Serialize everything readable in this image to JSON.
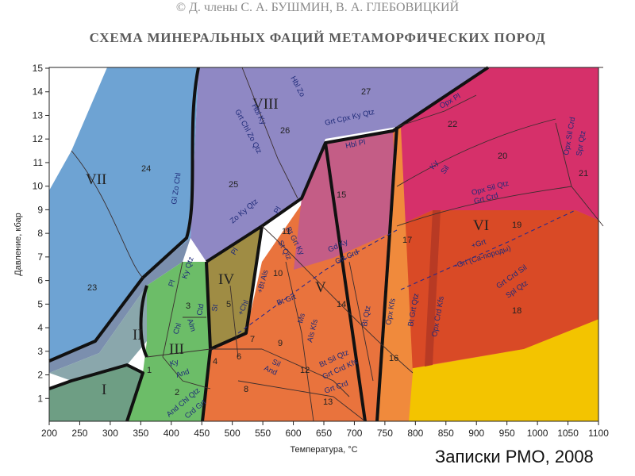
{
  "header": {
    "copyright": "© Д. члены С. А. БУШМИН, В. А. ГЛЕБОВИЦКИЙ",
    "title": "СХЕМА МИНЕРАЛЬНЫХ ФАЦИЙ МЕТАМОРФИЧЕСКИХ ПОРОД"
  },
  "footer": {
    "source": "Записки РМО, 2008"
  },
  "axes": {
    "xlabel": "Температура, °C",
    "ylabel": "Давление, кбар",
    "x_ticks": [
      "200",
      "250",
      "300",
      "350",
      "400",
      "450",
      "500",
      "550",
      "600",
      "650",
      "700",
      "750",
      "800",
      "850",
      "900",
      "950",
      "1000",
      "1050",
      "1100"
    ],
    "y_ticks": [
      "1",
      "2",
      "3",
      "4",
      "5",
      "6",
      "7",
      "8",
      "9",
      "10",
      "11",
      "12",
      "13",
      "14",
      "15"
    ]
  },
  "facies": {
    "roman": [
      "I",
      "II",
      "III",
      "IV",
      "V",
      "VI",
      "VII",
      "VIII"
    ],
    "fields": [
      "1",
      "2",
      "3",
      "4",
      "5",
      "6",
      "7",
      "8",
      "9",
      "10",
      "11",
      "12",
      "13",
      "14",
      "15",
      "16",
      "17",
      "18",
      "19",
      "20",
      "21",
      "22",
      "23",
      "24",
      "25",
      "26",
      "27"
    ]
  },
  "labels": [
    "Gl Zo Chl",
    "Grt Chl Zo Qtz",
    "Hbl Ky",
    "Hbl Zo",
    "Zo Ky Qtz",
    "Grt Cpx Ky Qtz",
    "Hbl Pl",
    "Opx Pl",
    "Ky",
    "Sil",
    "Opx Sil Qtz",
    "Grt Crd",
    "Opx Sil Crd",
    "Spr Qtz",
    "Pl",
    "Pl",
    "Bt Grt Ky",
    "St Qtz",
    "+Bt Als",
    "Gd Ky",
    "Grt Crd",
    "+Grt",
    "-Grt (Ca-породы)",
    "Grt Crd Sil",
    "Spl Qtz",
    "Ky Qtz",
    "Pl",
    "Alm",
    "Chl",
    "Ctd",
    "St",
    "+Chl",
    "Ms",
    "Als Kfs",
    "Bt Qtz",
    "Opx Kfs",
    "Bt Grt Qtz",
    "Opx Crd Kfs",
    "Ky",
    "And",
    "Sil",
    "And",
    "Bt Sil Qtz",
    "Grt Crd Kfs",
    "And Chl Qtz",
    "Crd Grt",
    "Grt Crd",
    "Bt Grt"
  ],
  "colors": {
    "I": "#6e9e84",
    "II": "#8aa7ac",
    "III": "#6cbd68",
    "IV": "#9f8c44",
    "V": "#e9733d",
    "VI": "#d94a26",
    "VII": "#6ea3d3",
    "VIII": "#8f88c4",
    "granulite_hp": "#d6306a",
    "eclogite_boundary": "#63579c",
    "yellow": "#f3c400"
  }
}
